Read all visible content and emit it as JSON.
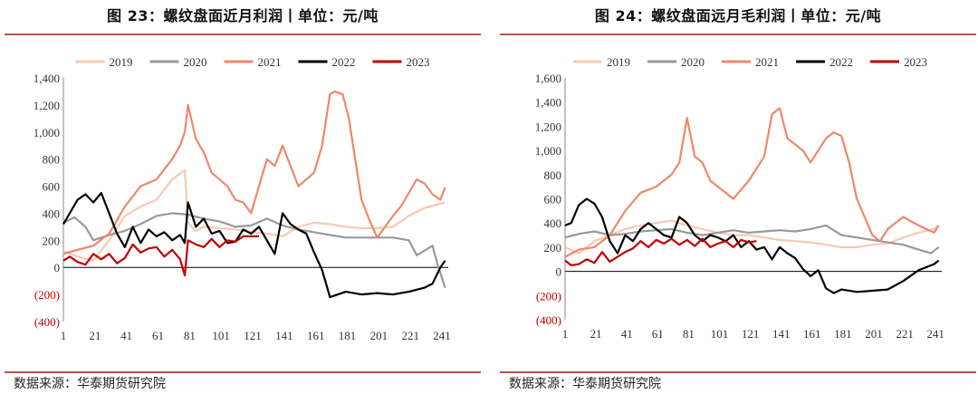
{
  "source_label": "数据来源：华泰期货研究院",
  "colors": {
    "2019": "#f8c9b3",
    "2020": "#999999",
    "2021": "#f0876a",
    "2022": "#000000",
    "2023": "#c00000",
    "negative_tick": "#c00000",
    "rule": "#c0504d"
  },
  "chart_data": [
    {
      "type": "line",
      "title": "图 23：螺纹盘面近月利润丨单位：元/吨",
      "xlabel": "",
      "ylabel": "",
      "ylim": [
        -400,
        1400
      ],
      "xlim": [
        1,
        245
      ],
      "yticks": [
        -400,
        -200,
        0,
        200,
        400,
        600,
        800,
        1000,
        1200,
        1400
      ],
      "ytick_labels": [
        "(400)",
        "(200)",
        "0",
        "200",
        "400",
        "600",
        "800",
        "1,000",
        "1,200",
        "1,400"
      ],
      "xticks": [
        1,
        21,
        41,
        61,
        81,
        101,
        121,
        141,
        161,
        181,
        201,
        221,
        241
      ],
      "legend_position": "top",
      "series": [
        {
          "name": "2019",
          "x": [
            1,
            10,
            20,
            30,
            40,
            50,
            60,
            70,
            78,
            80,
            85,
            90,
            100,
            110,
            120,
            130,
            140,
            150,
            160,
            170,
            180,
            190,
            200,
            210,
            220,
            230,
            240,
            243
          ],
          "y": [
            120,
            80,
            50,
            200,
            380,
            450,
            500,
            650,
            720,
            330,
            270,
            300,
            290,
            280,
            260,
            250,
            230,
            300,
            330,
            320,
            300,
            290,
            290,
            300,
            380,
            440,
            470,
            480
          ]
        },
        {
          "name": "2020",
          "x": [
            1,
            8,
            15,
            20,
            30,
            40,
            50,
            60,
            70,
            80,
            90,
            100,
            110,
            120,
            130,
            140,
            150,
            160,
            170,
            180,
            190,
            200,
            210,
            220,
            225,
            235,
            238,
            243
          ],
          "y": [
            330,
            370,
            300,
            200,
            240,
            270,
            320,
            380,
            400,
            390,
            360,
            340,
            300,
            310,
            360,
            310,
            280,
            260,
            240,
            220,
            220,
            220,
            220,
            200,
            90,
            160,
            30,
            -150
          ]
        },
        {
          "name": "2021",
          "x": [
            1,
            10,
            20,
            30,
            40,
            50,
            60,
            70,
            75,
            78,
            80,
            85,
            90,
            95,
            100,
            105,
            110,
            115,
            120,
            125,
            130,
            135,
            140,
            145,
            150,
            155,
            160,
            165,
            170,
            173,
            178,
            182,
            186,
            190,
            195,
            200,
            205,
            210,
            215,
            220,
            225,
            230,
            235,
            240,
            243
          ],
          "y": [
            100,
            130,
            160,
            250,
            450,
            600,
            650,
            800,
            900,
            1000,
            1200,
            950,
            850,
            700,
            650,
            600,
            500,
            480,
            400,
            600,
            800,
            750,
            900,
            750,
            600,
            650,
            700,
            900,
            1280,
            1300,
            1280,
            1100,
            800,
            500,
            350,
            220,
            300,
            380,
            450,
            550,
            650,
            620,
            540,
            500,
            590
          ]
        },
        {
          "name": "2022",
          "x": [
            1,
            10,
            15,
            20,
            25,
            30,
            35,
            40,
            45,
            50,
            55,
            60,
            65,
            70,
            75,
            78,
            80,
            85,
            90,
            95,
            100,
            105,
            110,
            115,
            120,
            125,
            130,
            135,
            140,
            145,
            150,
            155,
            160,
            165,
            170,
            180,
            190,
            200,
            210,
            220,
            230,
            235,
            240,
            243
          ],
          "y": [
            320,
            500,
            540,
            480,
            550,
            400,
            250,
            150,
            300,
            180,
            280,
            230,
            260,
            200,
            240,
            180,
            480,
            300,
            360,
            250,
            270,
            180,
            190,
            280,
            250,
            300,
            200,
            100,
            400,
            320,
            280,
            250,
            110,
            -20,
            -220,
            -180,
            -200,
            -190,
            -200,
            -180,
            -150,
            -120,
            0,
            50
          ]
        },
        {
          "name": "2023",
          "x": [
            1,
            5,
            10,
            15,
            20,
            25,
            30,
            35,
            40,
            45,
            50,
            55,
            60,
            65,
            70,
            75,
            78,
            80,
            85,
            90,
            95,
            100,
            105,
            110,
            115,
            120,
            125
          ],
          "y": [
            50,
            80,
            40,
            20,
            100,
            60,
            100,
            30,
            70,
            170,
            110,
            140,
            150,
            80,
            130,
            60,
            -60,
            200,
            170,
            150,
            210,
            150,
            200,
            190,
            230,
            230,
            230
          ]
        }
      ]
    },
    {
      "type": "line",
      "title": "图 24：螺纹盘面远月毛利润丨单位：元/吨",
      "xlabel": "",
      "ylabel": "",
      "ylim": [
        -400,
        1600
      ],
      "xlim": [
        1,
        245
      ],
      "yticks": [
        -400,
        -200,
        0,
        200,
        400,
        600,
        800,
        1000,
        1200,
        1400,
        1600
      ],
      "ytick_labels": [
        "(400)",
        "(200)",
        "0",
        "200",
        "400",
        "600",
        "800",
        "1,000",
        "1,200",
        "1,400",
        "1,600"
      ],
      "xticks": [
        1,
        21,
        41,
        61,
        81,
        101,
        121,
        141,
        161,
        181,
        201,
        221,
        241
      ],
      "legend_position": "top",
      "series": [
        {
          "name": "2019",
          "x": [
            1,
            10,
            20,
            30,
            40,
            50,
            60,
            70,
            80,
            90,
            100,
            110,
            120,
            130,
            140,
            150,
            160,
            170,
            180,
            190,
            200,
            210,
            220,
            230,
            240,
            243
          ],
          "y": [
            200,
            150,
            250,
            300,
            350,
            380,
            400,
            420,
            380,
            350,
            320,
            300,
            300,
            280,
            260,
            250,
            240,
            220,
            200,
            200,
            220,
            230,
            280,
            320,
            350,
            380
          ]
        },
        {
          "name": "2020",
          "x": [
            1,
            10,
            20,
            30,
            40,
            50,
            60,
            70,
            80,
            90,
            100,
            110,
            120,
            130,
            140,
            150,
            160,
            170,
            180,
            190,
            200,
            210,
            220,
            230,
            238,
            243
          ],
          "y": [
            280,
            310,
            330,
            300,
            310,
            330,
            340,
            350,
            320,
            300,
            320,
            340,
            320,
            330,
            340,
            330,
            350,
            380,
            300,
            280,
            260,
            240,
            220,
            180,
            150,
            200
          ]
        },
        {
          "name": "2021",
          "x": [
            1,
            10,
            20,
            30,
            40,
            50,
            60,
            70,
            75,
            80,
            85,
            90,
            95,
            100,
            105,
            110,
            120,
            130,
            135,
            140,
            145,
            150,
            155,
            160,
            165,
            170,
            175,
            180,
            185,
            190,
            195,
            200,
            205,
            210,
            220,
            230,
            240,
            243
          ],
          "y": [
            120,
            180,
            200,
            300,
            500,
            650,
            700,
            800,
            900,
            1270,
            950,
            900,
            750,
            700,
            650,
            600,
            750,
            950,
            1300,
            1350,
            1100,
            1050,
            1000,
            900,
            1000,
            1100,
            1150,
            1120,
            900,
            600,
            450,
            300,
            250,
            350,
            450,
            380,
            320,
            380
          ]
        },
        {
          "name": "2022",
          "x": [
            1,
            5,
            10,
            15,
            20,
            25,
            30,
            35,
            40,
            45,
            50,
            55,
            60,
            65,
            70,
            75,
            80,
            85,
            90,
            95,
            100,
            105,
            110,
            115,
            120,
            125,
            130,
            135,
            140,
            145,
            150,
            155,
            160,
            165,
            170,
            175,
            180,
            190,
            200,
            210,
            220,
            230,
            240,
            243
          ],
          "y": [
            380,
            400,
            550,
            600,
            560,
            450,
            250,
            150,
            300,
            250,
            350,
            400,
            350,
            300,
            280,
            450,
            400,
            300,
            250,
            300,
            280,
            250,
            300,
            200,
            250,
            180,
            200,
            100,
            200,
            150,
            110,
            20,
            -40,
            10,
            -140,
            -180,
            -150,
            -170,
            -160,
            -150,
            -80,
            10,
            60,
            90
          ]
        },
        {
          "name": "2023",
          "x": [
            1,
            5,
            10,
            15,
            20,
            25,
            30,
            35,
            40,
            45,
            50,
            55,
            60,
            65,
            70,
            75,
            80,
            85,
            90,
            95,
            100,
            105,
            110,
            115,
            120,
            125
          ],
          "y": [
            90,
            50,
            60,
            100,
            70,
            160,
            80,
            120,
            160,
            190,
            250,
            200,
            260,
            230,
            270,
            220,
            260,
            210,
            270,
            200,
            230,
            250,
            200,
            260,
            240,
            250
          ]
        }
      ]
    }
  ]
}
